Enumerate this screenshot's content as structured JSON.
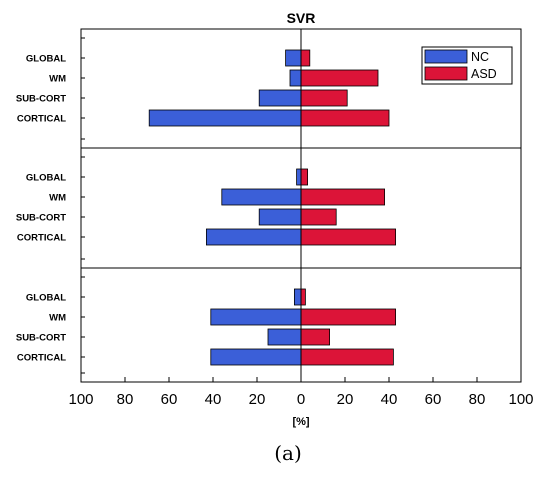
{
  "chart_data": {
    "type": "bar",
    "title": "SVR",
    "xlabel": "[%]",
    "xlim": [
      -100,
      100
    ],
    "x_ticks": [
      "100",
      "80",
      "60",
      "40",
      "20",
      "0",
      "20",
      "40",
      "60",
      "80",
      "100"
    ],
    "categories": [
      "GLOBAL",
      "WM",
      "SUB-CORT",
      "CORTICAL"
    ],
    "legend_position": "top-right",
    "colors": {
      "NC": "#3b5fd8",
      "ASD": "#dc1438"
    },
    "series_names": [
      "NC",
      "ASD"
    ],
    "panels": [
      {
        "series": [
          {
            "name": "NC",
            "values": [
              7,
              5,
              19,
              69
            ]
          },
          {
            "name": "ASD",
            "values": [
              4,
              35,
              21,
              40
            ]
          }
        ]
      },
      {
        "series": [
          {
            "name": "NC",
            "values": [
              2,
              36,
              19,
              43
            ]
          },
          {
            "name": "ASD",
            "values": [
              3,
              38,
              16,
              43
            ]
          }
        ]
      },
      {
        "series": [
          {
            "name": "NC",
            "values": [
              3,
              41,
              15,
              41
            ]
          },
          {
            "name": "ASD",
            "values": [
              2,
              43,
              13,
              42
            ]
          }
        ]
      }
    ],
    "caption": "(a)"
  }
}
